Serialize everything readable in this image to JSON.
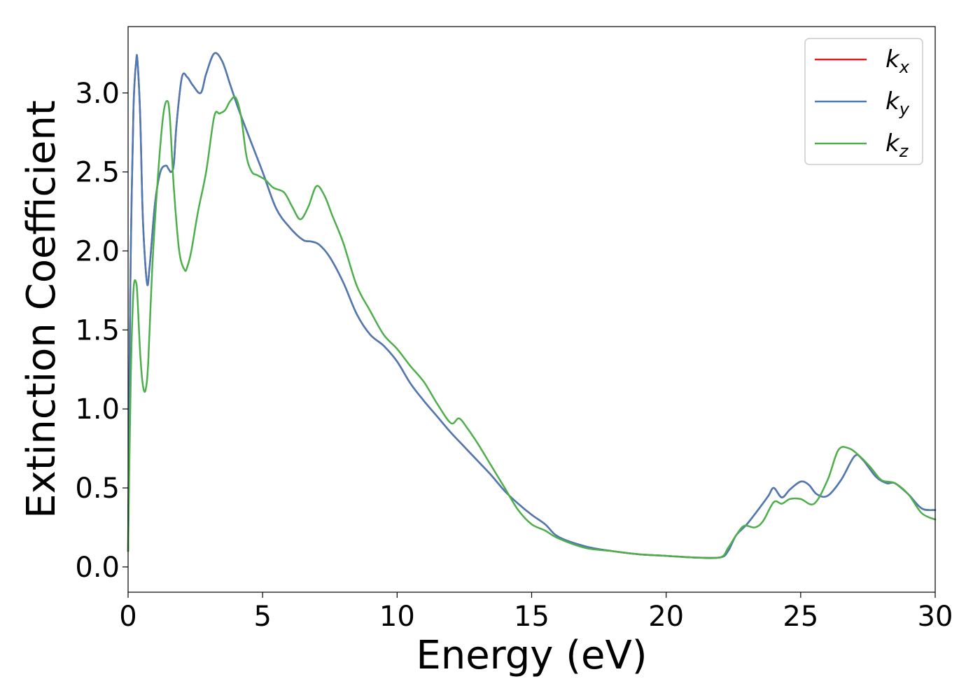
{
  "chart_data": {
    "type": "line",
    "xlabel": "Energy (eV)",
    "ylabel": "Extinction Coefficient",
    "xlim": [
      0,
      30
    ],
    "ylim": [
      -0.16,
      3.42
    ],
    "x_ticks": [
      "0",
      "5",
      "10",
      "15",
      "20",
      "25",
      "30"
    ],
    "y_ticks": [
      "0.0",
      "0.5",
      "1.0",
      "1.5",
      "2.0",
      "2.5",
      "3.0"
    ],
    "grid": false,
    "legend_position": "top-right",
    "series": [
      {
        "name": "k_x",
        "label_main": "k",
        "label_sub": "x",
        "color": "#e41a1c",
        "x": [
          0,
          0.05,
          0.1,
          0.2,
          0.3,
          0.35,
          0.45,
          0.55,
          0.7,
          0.8,
          1.0,
          1.2,
          1.4,
          1.5,
          1.6,
          1.7,
          1.8,
          2.0,
          2.2,
          2.4,
          2.7,
          2.9,
          3.2,
          3.5,
          3.8,
          4.1,
          4.5,
          5.0,
          5.5,
          6.0,
          6.5,
          6.8,
          7.1,
          7.5,
          8.0,
          8.5,
          9.0,
          9.5,
          10.0,
          10.5,
          11.0,
          11.5,
          12.0,
          12.5,
          13.0,
          13.5,
          14.0,
          14.5,
          15.0,
          15.5,
          16.0,
          17.0,
          18.0,
          19.0,
          20.0,
          21.0,
          22.0,
          22.3,
          22.6,
          23.0,
          23.5,
          23.8,
          24.0,
          24.3,
          24.6,
          25.0,
          25.3,
          25.6,
          26.0,
          26.5,
          27.0,
          27.3,
          27.8,
          28.2,
          28.5,
          29.0,
          29.5,
          30.0
        ],
        "values": [
          0.1,
          1.2,
          2.0,
          2.9,
          3.2,
          3.2,
          2.85,
          2.2,
          1.8,
          1.9,
          2.3,
          2.5,
          2.54,
          2.52,
          2.5,
          2.55,
          2.8,
          3.1,
          3.1,
          3.05,
          3.0,
          3.12,
          3.25,
          3.2,
          3.05,
          2.9,
          2.72,
          2.5,
          2.27,
          2.15,
          2.07,
          2.06,
          2.04,
          1.96,
          1.8,
          1.6,
          1.47,
          1.4,
          1.3,
          1.16,
          1.05,
          0.95,
          0.85,
          0.76,
          0.67,
          0.58,
          0.48,
          0.4,
          0.33,
          0.27,
          0.19,
          0.13,
          0.1,
          0.08,
          0.07,
          0.06,
          0.06,
          0.1,
          0.2,
          0.27,
          0.38,
          0.45,
          0.5,
          0.44,
          0.49,
          0.54,
          0.52,
          0.46,
          0.45,
          0.55,
          0.7,
          0.68,
          0.57,
          0.53,
          0.53,
          0.46,
          0.37,
          0.36
        ]
      },
      {
        "name": "k_y",
        "label_main": "k",
        "label_sub": "y",
        "color": "#4a7bb7",
        "x": [
          0,
          0.05,
          0.1,
          0.2,
          0.3,
          0.35,
          0.45,
          0.55,
          0.7,
          0.8,
          1.0,
          1.2,
          1.4,
          1.5,
          1.6,
          1.7,
          1.8,
          2.0,
          2.2,
          2.4,
          2.7,
          2.9,
          3.2,
          3.5,
          3.8,
          4.1,
          4.5,
          5.0,
          5.5,
          6.0,
          6.5,
          6.8,
          7.1,
          7.5,
          8.0,
          8.5,
          9.0,
          9.5,
          10.0,
          10.5,
          11.0,
          11.5,
          12.0,
          12.5,
          13.0,
          13.5,
          14.0,
          14.5,
          15.0,
          15.5,
          16.0,
          17.0,
          18.0,
          19.0,
          20.0,
          21.0,
          22.0,
          22.3,
          22.6,
          23.0,
          23.5,
          23.8,
          24.0,
          24.3,
          24.6,
          25.0,
          25.3,
          25.6,
          26.0,
          26.5,
          27.0,
          27.3,
          27.8,
          28.2,
          28.5,
          29.0,
          29.5,
          30.0
        ],
        "values": [
          0.1,
          1.2,
          2.0,
          2.9,
          3.2,
          3.2,
          2.85,
          2.2,
          1.8,
          1.9,
          2.3,
          2.5,
          2.54,
          2.52,
          2.5,
          2.55,
          2.8,
          3.1,
          3.1,
          3.05,
          3.0,
          3.12,
          3.25,
          3.2,
          3.05,
          2.9,
          2.72,
          2.5,
          2.27,
          2.15,
          2.07,
          2.06,
          2.04,
          1.96,
          1.8,
          1.6,
          1.47,
          1.4,
          1.3,
          1.16,
          1.05,
          0.95,
          0.85,
          0.76,
          0.67,
          0.58,
          0.48,
          0.4,
          0.33,
          0.27,
          0.19,
          0.13,
          0.1,
          0.08,
          0.07,
          0.06,
          0.06,
          0.1,
          0.2,
          0.27,
          0.38,
          0.45,
          0.5,
          0.44,
          0.49,
          0.54,
          0.52,
          0.46,
          0.45,
          0.55,
          0.7,
          0.68,
          0.57,
          0.53,
          0.53,
          0.46,
          0.37,
          0.36
        ]
      },
      {
        "name": "k_z",
        "label_main": "k",
        "label_sub": "z",
        "color": "#4daf4a",
        "x": [
          0,
          0.1,
          0.2,
          0.3,
          0.35,
          0.45,
          0.55,
          0.65,
          0.75,
          0.9,
          1.1,
          1.3,
          1.45,
          1.55,
          1.7,
          1.9,
          2.1,
          2.2,
          2.35,
          2.6,
          2.9,
          3.2,
          3.4,
          3.6,
          3.8,
          4.0,
          4.2,
          4.4,
          4.6,
          4.8,
          5.1,
          5.4,
          5.8,
          6.1,
          6.4,
          6.7,
          7.0,
          7.3,
          7.6,
          8.0,
          8.5,
          9.0,
          9.5,
          10.0,
          10.5,
          11.0,
          11.5,
          12.0,
          12.3,
          12.6,
          13.0,
          13.5,
          14.0,
          14.5,
          15.0,
          15.5,
          16.0,
          17.0,
          18.0,
          19.0,
          20.0,
          21.0,
          22.0,
          22.3,
          22.6,
          22.9,
          23.3,
          23.6,
          24.0,
          24.3,
          24.6,
          25.0,
          25.5,
          26.0,
          26.4,
          26.8,
          27.2,
          27.6,
          28.0,
          28.5,
          29.0,
          29.5,
          30.0
        ],
        "values": [
          0.1,
          1.2,
          1.75,
          1.8,
          1.7,
          1.35,
          1.15,
          1.12,
          1.3,
          1.9,
          2.45,
          2.85,
          2.95,
          2.85,
          2.4,
          2.0,
          1.88,
          1.9,
          2.0,
          2.25,
          2.5,
          2.85,
          2.87,
          2.89,
          2.95,
          2.97,
          2.85,
          2.6,
          2.5,
          2.48,
          2.45,
          2.4,
          2.37,
          2.28,
          2.2,
          2.28,
          2.41,
          2.35,
          2.22,
          2.05,
          1.78,
          1.62,
          1.47,
          1.38,
          1.27,
          1.17,
          1.03,
          0.91,
          0.94,
          0.88,
          0.78,
          0.64,
          0.5,
          0.36,
          0.27,
          0.23,
          0.18,
          0.12,
          0.1,
          0.08,
          0.07,
          0.06,
          0.06,
          0.12,
          0.2,
          0.26,
          0.25,
          0.29,
          0.41,
          0.4,
          0.43,
          0.43,
          0.4,
          0.55,
          0.74,
          0.75,
          0.7,
          0.63,
          0.55,
          0.53,
          0.46,
          0.34,
          0.3
        ]
      }
    ]
  }
}
